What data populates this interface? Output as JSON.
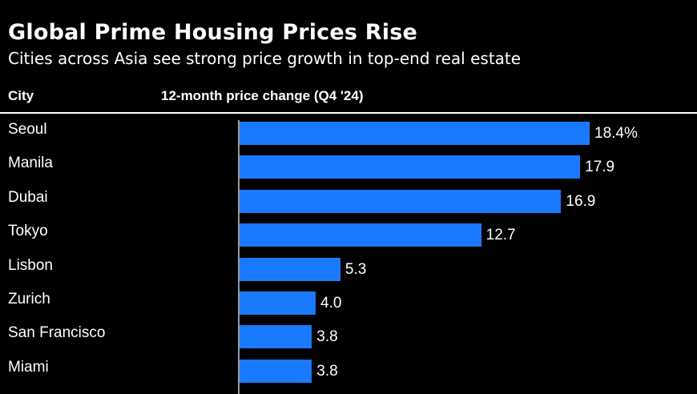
{
  "title": "Global Prime Housing Prices Rise",
  "subtitle": "Cities across Asia see strong price growth in top-end real estate",
  "headers": {
    "city": "City",
    "change": "12-month price change (Q4 '24)"
  },
  "chart_data": {
    "type": "bar",
    "orientation": "horizontal",
    "title": "Global Prime Housing Prices Rise",
    "subtitle": "Cities across Asia see strong price growth in top-end real estate",
    "xlabel": "12-month price change (Q4 '24)",
    "ylabel": "City",
    "unit": "%",
    "xlim": [
      0,
      18.4
    ],
    "categories": [
      "Seoul",
      "Manila",
      "Dubai",
      "Tokyo",
      "Lisbon",
      "Zurich",
      "San Francisco",
      "Miami"
    ],
    "values": [
      18.4,
      17.9,
      16.9,
      12.7,
      5.3,
      4.0,
      3.8,
      3.8
    ],
    "labels": [
      "18.4%",
      "17.9",
      "16.9",
      "12.7",
      "5.3",
      "4.0",
      "3.8",
      "3.8"
    ],
    "bar_color": "#1a7aff"
  }
}
